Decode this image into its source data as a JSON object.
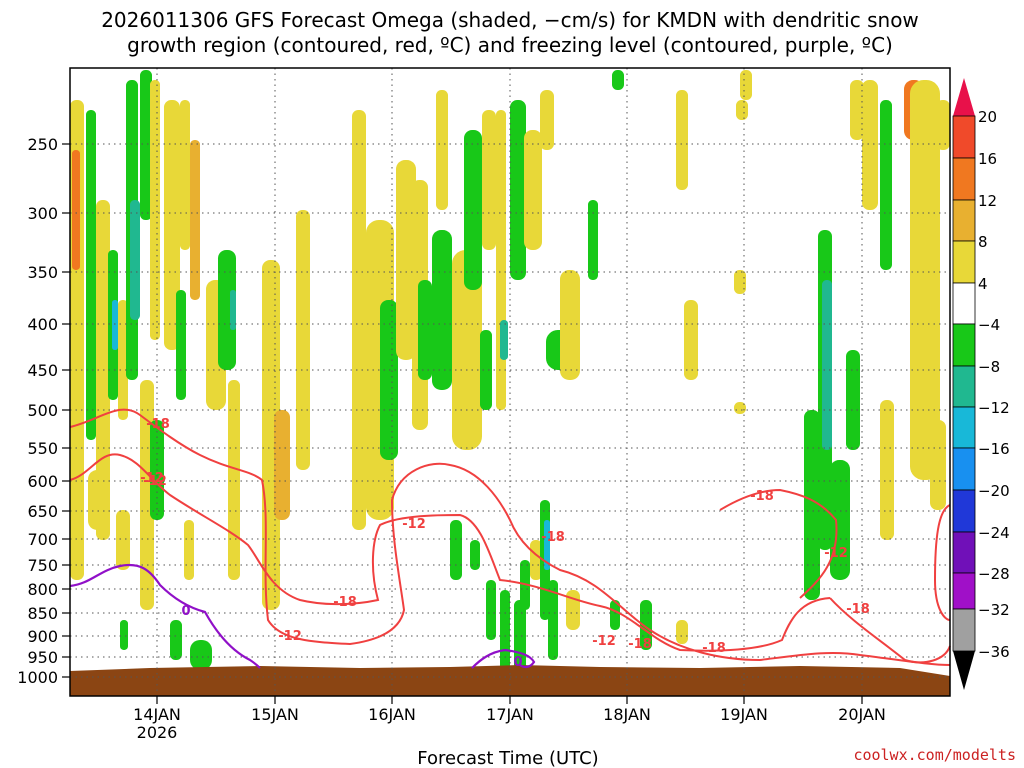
{
  "chart_data": {
    "type": "heatmap",
    "title_line1": "2026011306 GFS Forecast Omega (shaded, −cm/s) for KMDN with dendritic snow",
    "title_line2": "growth region (contoured, red, ºC) and freezing level (contoured, purple, ºC)",
    "xlabel": "Forecast Time (UTC)",
    "credit": "coolwx.com/modelts",
    "y_ticks": [
      "250",
      "300",
      "350",
      "400",
      "450",
      "500",
      "550",
      "600",
      "650",
      "700",
      "750",
      "800",
      "850",
      "900",
      "950",
      "1000"
    ],
    "x_ticks": [
      "14JAN",
      "15JAN",
      "16JAN",
      "17JAN",
      "18JAN",
      "19JAN",
      "20JAN"
    ],
    "x_year": "2026",
    "colorbar_labels": [
      "20",
      "16",
      "12",
      "8",
      "4",
      "−4",
      "−8",
      "−12",
      "−16",
      "−20",
      "−24",
      "−28",
      "−32",
      "−36"
    ],
    "colorbar_colors": [
      "#e8114a",
      "#f04a2a",
      "#f07820",
      "#e8b030",
      "#e8d838",
      "#ffffff",
      "#18c818",
      "#20b890",
      "#18b8d8",
      "#1890f0",
      "#2038d8",
      "#7010b8",
      "#a010c8",
      "#a0a0a0"
    ],
    "contour_labels_red": [
      "-18",
      "-12",
      "-12",
      "-18",
      "-12",
      "-12",
      "-18",
      "-18",
      "-12",
      "-18",
      "-18",
      "-12",
      "-18"
    ],
    "contour_labels_purple": [
      "0",
      "0"
    ],
    "shading_colors": {
      "yellow": "#e8d838",
      "gold": "#e8b030",
      "orange": "#f07820",
      "green": "#18c818",
      "teal": "#20b890",
      "cyan": "#18b8d8",
      "ground": "#8b4513",
      "dsgz": "#f04040",
      "freezing": "#9010c8"
    }
  }
}
